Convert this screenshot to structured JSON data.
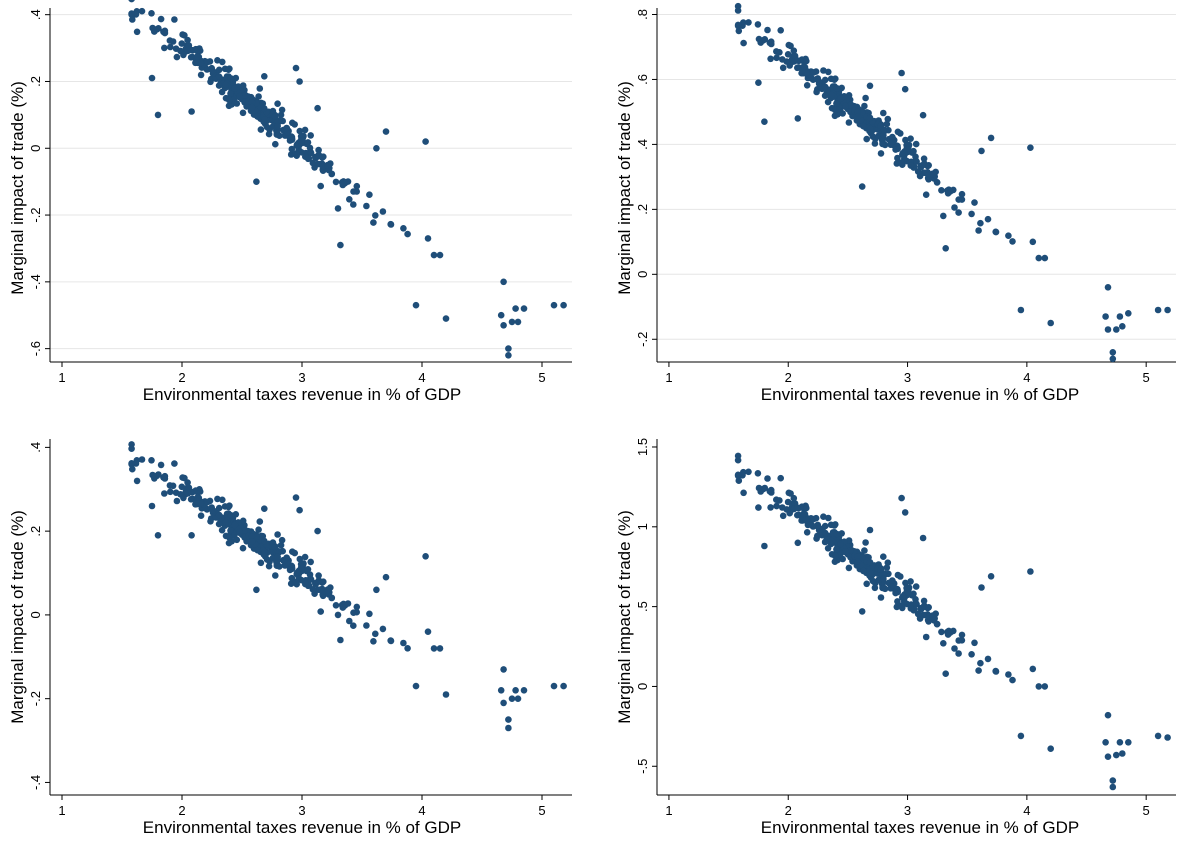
{
  "colors": {
    "marker": "#1f4e79",
    "grid": "#e6e6e6",
    "axis": "#000000",
    "background": "#ffffff"
  },
  "chart_data": [
    {
      "type": "scatter",
      "xlabel": "Environmental taxes revenue in % of GDP",
      "ylabel": "Marginal impact of trade (%)",
      "xlim": [
        0.9,
        5.25
      ],
      "ylim": [
        -0.64,
        0.42
      ],
      "xticks": [
        1,
        2,
        3,
        4,
        5
      ],
      "xtick_labels": [
        "1",
        "2",
        "3",
        "4",
        "5"
      ],
      "yticks": [
        -0.6,
        -0.4,
        -0.2,
        0,
        0.2,
        0.4
      ],
      "ytick_labels": [
        "-.6",
        "-.4",
        "-.2",
        "0",
        ".2",
        ".4"
      ],
      "grid": true,
      "a": 0.9,
      "b": -0.297,
      "outliers": [
        [
          1.8,
          0.1
        ],
        [
          2.08,
          0.11
        ],
        [
          1.75,
          0.21
        ],
        [
          2.95,
          0.24
        ],
        [
          2.98,
          0.2
        ],
        [
          3.13,
          0.12
        ],
        [
          2.62,
          -0.1
        ],
        [
          3.32,
          -0.29
        ],
        [
          3.3,
          -0.18
        ],
        [
          3.95,
          -0.47
        ],
        [
          4.2,
          -0.51
        ],
        [
          4.03,
          0.02
        ],
        [
          4.68,
          -0.4
        ],
        [
          4.68,
          -0.53
        ],
        [
          4.72,
          -0.62
        ],
        [
          4.72,
          -0.6
        ],
        [
          4.66,
          -0.5
        ],
        [
          4.8,
          -0.52
        ],
        [
          4.85,
          -0.48
        ],
        [
          4.78,
          -0.48
        ],
        [
          4.75,
          -0.52
        ],
        [
          5.1,
          -0.47
        ],
        [
          5.18,
          -0.47
        ],
        [
          3.7,
          0.05
        ],
        [
          3.62,
          0.0
        ],
        [
          4.1,
          -0.32
        ],
        [
          4.15,
          -0.32
        ],
        [
          4.05,
          -0.27
        ]
      ]
    },
    {
      "type": "scatter",
      "xlabel": "Environmental taxes revenue in % of GDP",
      "ylabel": "Marginal impact of trade (%)",
      "xlim": [
        0.9,
        5.25
      ],
      "ylim": [
        -0.27,
        0.82
      ],
      "xticks": [
        1,
        2,
        3,
        4,
        5
      ],
      "xtick_labels": [
        "1",
        "2",
        "3",
        "4",
        "5"
      ],
      "yticks": [
        -0.2,
        0,
        0.2,
        0.4,
        0.6,
        0.8
      ],
      "ytick_labels": [
        "-.2",
        "0",
        ".2",
        ".4",
        ".6",
        ".8"
      ],
      "grid": true,
      "a": 1.27,
      "b": -0.3,
      "outliers": [
        [
          1.8,
          0.47
        ],
        [
          2.08,
          0.48
        ],
        [
          1.75,
          0.59
        ],
        [
          2.95,
          0.62
        ],
        [
          2.98,
          0.57
        ],
        [
          3.13,
          0.49
        ],
        [
          2.62,
          0.27
        ],
        [
          3.32,
          0.08
        ],
        [
          3.3,
          0.18
        ],
        [
          3.95,
          -0.11
        ],
        [
          4.2,
          -0.15
        ],
        [
          4.03,
          0.39
        ],
        [
          4.68,
          -0.04
        ],
        [
          4.68,
          -0.17
        ],
        [
          4.72,
          -0.26
        ],
        [
          4.72,
          -0.24
        ],
        [
          4.66,
          -0.13
        ],
        [
          4.8,
          -0.16
        ],
        [
          4.85,
          -0.12
        ],
        [
          4.78,
          -0.13
        ],
        [
          4.75,
          -0.17
        ],
        [
          5.1,
          -0.11
        ],
        [
          5.18,
          -0.11
        ],
        [
          3.7,
          0.42
        ],
        [
          3.62,
          0.38
        ],
        [
          4.1,
          0.05
        ],
        [
          4.15,
          0.05
        ],
        [
          4.05,
          0.1
        ]
      ]
    },
    {
      "type": "scatter",
      "xlabel": "Environmental taxes revenue in % of GDP",
      "ylabel": "Marginal impact of trade (%)",
      "xlim": [
        0.9,
        5.25
      ],
      "ylim": [
        -0.43,
        0.42
      ],
      "xticks": [
        1,
        2,
        3,
        4,
        5
      ],
      "xtick_labels": [
        "1",
        "2",
        "3",
        "4",
        "5"
      ],
      "yticks": [
        -0.4,
        -0.2,
        0,
        0.2,
        0.4
      ],
      "ytick_labels": [
        "-.4",
        "-.2",
        "0",
        ".2",
        ".4"
      ],
      "grid": false,
      "a": 0.7,
      "b": -0.2,
      "outliers": [
        [
          1.8,
          0.19
        ],
        [
          2.08,
          0.19
        ],
        [
          1.75,
          0.26
        ],
        [
          2.95,
          0.28
        ],
        [
          2.98,
          0.25
        ],
        [
          3.13,
          0.2
        ],
        [
          2.62,
          0.06
        ],
        [
          3.32,
          -0.06
        ],
        [
          3.3,
          0.0
        ],
        [
          3.95,
          -0.17
        ],
        [
          4.2,
          -0.19
        ],
        [
          4.03,
          0.14
        ],
        [
          4.68,
          -0.13
        ],
        [
          4.68,
          -0.21
        ],
        [
          4.72,
          -0.27
        ],
        [
          4.72,
          -0.25
        ],
        [
          4.66,
          -0.18
        ],
        [
          4.8,
          -0.2
        ],
        [
          4.85,
          -0.18
        ],
        [
          4.78,
          -0.18
        ],
        [
          4.75,
          -0.2
        ],
        [
          5.1,
          -0.17
        ],
        [
          5.18,
          -0.17
        ],
        [
          3.7,
          0.09
        ],
        [
          3.62,
          0.06
        ],
        [
          4.1,
          -0.08
        ],
        [
          4.15,
          -0.08
        ],
        [
          4.05,
          -0.04
        ]
      ]
    },
    {
      "type": "scatter",
      "xlabel": "Environmental taxes revenue in % of GDP",
      "ylabel": "Marginal impact of trade (%)",
      "xlim": [
        0.9,
        5.25
      ],
      "ylim": [
        -0.68,
        1.55
      ],
      "xticks": [
        1,
        2,
        3,
        4,
        5
      ],
      "xtick_labels": [
        "1",
        "2",
        "3",
        "4",
        "5"
      ],
      "yticks": [
        -0.5,
        0,
        0.5,
        1,
        1.5
      ],
      "ytick_labels": [
        "-.5",
        "0",
        ".5",
        "1",
        "1.5"
      ],
      "grid": false,
      "a": 2.3,
      "b": -0.58,
      "outliers": [
        [
          1.8,
          0.88
        ],
        [
          2.08,
          0.9
        ],
        [
          1.75,
          1.12
        ],
        [
          2.95,
          1.18
        ],
        [
          2.98,
          1.09
        ],
        [
          3.13,
          0.93
        ],
        [
          2.62,
          0.47
        ],
        [
          3.32,
          0.08
        ],
        [
          3.3,
          0.27
        ],
        [
          3.95,
          -0.31
        ],
        [
          4.2,
          -0.39
        ],
        [
          4.03,
          0.72
        ],
        [
          4.68,
          -0.18
        ],
        [
          4.68,
          -0.44
        ],
        [
          4.72,
          -0.63
        ],
        [
          4.72,
          -0.59
        ],
        [
          4.66,
          -0.35
        ],
        [
          4.8,
          -0.42
        ],
        [
          4.85,
          -0.35
        ],
        [
          4.78,
          -0.35
        ],
        [
          4.75,
          -0.43
        ],
        [
          5.1,
          -0.31
        ],
        [
          5.18,
          -0.32
        ],
        [
          3.7,
          0.69
        ],
        [
          3.62,
          0.62
        ],
        [
          4.1,
          0.0
        ],
        [
          4.15,
          0.0
        ],
        [
          4.05,
          0.11
        ]
      ]
    }
  ]
}
